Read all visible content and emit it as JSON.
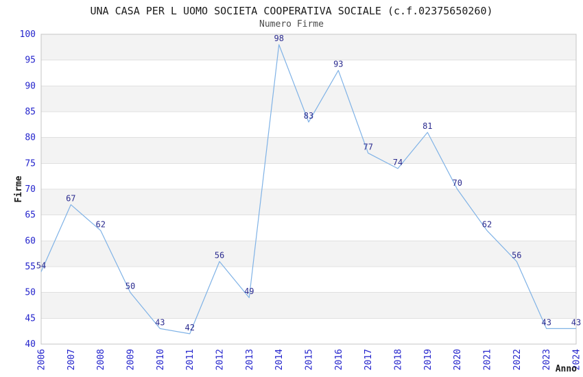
{
  "chart_data": {
    "type": "line",
    "title": "UNA CASA PER L UOMO SOCIETA COOPERATIVA SOCIALE (c.f.02375650260)",
    "subtitle": "Numero Firme",
    "xlabel": "Anno",
    "ylabel": "Firme",
    "x": [
      2006,
      2007,
      2008,
      2009,
      2010,
      2011,
      2012,
      2013,
      2014,
      2015,
      2016,
      2017,
      2018,
      2019,
      2020,
      2021,
      2022,
      2023,
      2024
    ],
    "series": [
      {
        "name": "Numero Firme",
        "values": [
          54,
          67,
          62,
          50,
          43,
          42,
          56,
          49,
          98,
          83,
          93,
          77,
          74,
          81,
          70,
          62,
          56,
          43,
          43
        ]
      }
    ],
    "ylim": [
      40,
      100
    ],
    "ytick_step": 5,
    "yticks": [
      40,
      45,
      50,
      55,
      60,
      65,
      70,
      75,
      80,
      85,
      90,
      95,
      100
    ],
    "grid": true,
    "alternating_bands": true,
    "point_labels": true,
    "legend_position": "none",
    "colors": {
      "line": "#7fb2e6",
      "point_label": "#2b2b8f",
      "tick_label": "#2323cc",
      "band": "#f3f3f3",
      "gridline": "#e0e0e0",
      "frame": "#c4c4c4",
      "title": "#1a1a1a",
      "subtitle": "#4a4a4a",
      "axis_title": "#1a1a1a",
      "background": "#ffffff"
    }
  }
}
